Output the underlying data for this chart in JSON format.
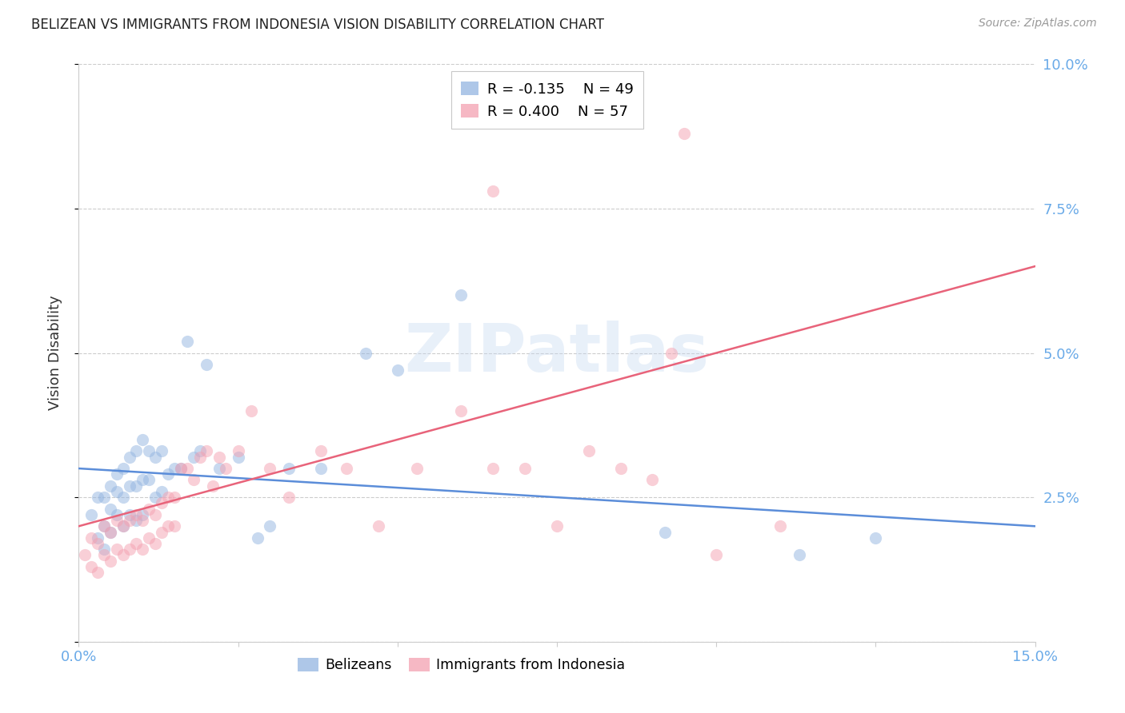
{
  "title": "BELIZEAN VS IMMIGRANTS FROM INDONESIA VISION DISABILITY CORRELATION CHART",
  "source": "Source: ZipAtlas.com",
  "ylabel": "Vision Disability",
  "watermark": "ZIPatlas",
  "xlim": [
    0.0,
    0.15
  ],
  "ylim": [
    0.0,
    0.1
  ],
  "xticks": [
    0.0,
    0.025,
    0.05,
    0.075,
    0.1,
    0.125,
    0.15
  ],
  "xtick_labels": [
    "0.0%",
    "",
    "",
    "",
    "",
    "",
    "15.0%"
  ],
  "yticks": [
    0.0,
    0.025,
    0.05,
    0.075,
    0.1
  ],
  "ytick_labels_right": [
    "",
    "2.5%",
    "5.0%",
    "7.5%",
    "10.0%"
  ],
  "blue_color": "#93b5e1",
  "pink_color": "#f4a0b0",
  "blue_line_color": "#5b8dd9",
  "pink_line_color": "#e8637a",
  "title_color": "#222222",
  "axis_label_color": "#333333",
  "tick_color": "#6aaae8",
  "source_color": "#999999",
  "grid_color": "#cccccc",
  "legend_blue_R": "R = -0.135",
  "legend_blue_N": "N = 49",
  "legend_pink_R": "R = 0.400",
  "legend_pink_N": "N = 57",
  "blue_line_y0": 0.03,
  "blue_line_y1": 0.02,
  "pink_line_y0": 0.02,
  "pink_line_y1": 0.065,
  "blue_x": [
    0.002,
    0.003,
    0.003,
    0.004,
    0.004,
    0.004,
    0.005,
    0.005,
    0.005,
    0.006,
    0.006,
    0.006,
    0.007,
    0.007,
    0.007,
    0.008,
    0.008,
    0.008,
    0.009,
    0.009,
    0.009,
    0.01,
    0.01,
    0.01,
    0.011,
    0.011,
    0.012,
    0.012,
    0.013,
    0.013,
    0.014,
    0.015,
    0.016,
    0.017,
    0.018,
    0.019,
    0.02,
    0.022,
    0.025,
    0.028,
    0.03,
    0.033,
    0.038,
    0.045,
    0.05,
    0.06,
    0.092,
    0.113,
    0.125
  ],
  "blue_y": [
    0.022,
    0.018,
    0.025,
    0.016,
    0.02,
    0.025,
    0.019,
    0.023,
    0.027,
    0.022,
    0.026,
    0.029,
    0.02,
    0.025,
    0.03,
    0.022,
    0.027,
    0.032,
    0.021,
    0.027,
    0.033,
    0.022,
    0.028,
    0.035,
    0.028,
    0.033,
    0.025,
    0.032,
    0.026,
    0.033,
    0.029,
    0.03,
    0.03,
    0.052,
    0.032,
    0.033,
    0.048,
    0.03,
    0.032,
    0.018,
    0.02,
    0.03,
    0.03,
    0.05,
    0.047,
    0.06,
    0.019,
    0.015,
    0.018
  ],
  "pink_x": [
    0.001,
    0.002,
    0.002,
    0.003,
    0.003,
    0.004,
    0.004,
    0.005,
    0.005,
    0.006,
    0.006,
    0.007,
    0.007,
    0.008,
    0.008,
    0.009,
    0.009,
    0.01,
    0.01,
    0.011,
    0.011,
    0.012,
    0.012,
    0.013,
    0.013,
    0.014,
    0.014,
    0.015,
    0.015,
    0.016,
    0.017,
    0.018,
    0.019,
    0.02,
    0.021,
    0.022,
    0.023,
    0.025,
    0.027,
    0.03,
    0.033,
    0.038,
    0.042,
    0.047,
    0.053,
    0.06,
    0.065,
    0.07,
    0.075,
    0.08,
    0.085,
    0.09,
    0.095,
    0.1,
    0.11,
    0.093,
    0.065
  ],
  "pink_y": [
    0.015,
    0.013,
    0.018,
    0.012,
    0.017,
    0.015,
    0.02,
    0.014,
    0.019,
    0.016,
    0.021,
    0.015,
    0.02,
    0.016,
    0.021,
    0.017,
    0.022,
    0.016,
    0.021,
    0.018,
    0.023,
    0.017,
    0.022,
    0.019,
    0.024,
    0.02,
    0.025,
    0.02,
    0.025,
    0.03,
    0.03,
    0.028,
    0.032,
    0.033,
    0.027,
    0.032,
    0.03,
    0.033,
    0.04,
    0.03,
    0.025,
    0.033,
    0.03,
    0.02,
    0.03,
    0.04,
    0.078,
    0.03,
    0.02,
    0.033,
    0.03,
    0.028,
    0.088,
    0.015,
    0.02,
    0.05,
    0.03
  ],
  "marker_size": 120,
  "marker_alpha": 0.5,
  "bg_color": "#ffffff",
  "bottom_legend": [
    "Belizeans",
    "Immigrants from Indonesia"
  ]
}
